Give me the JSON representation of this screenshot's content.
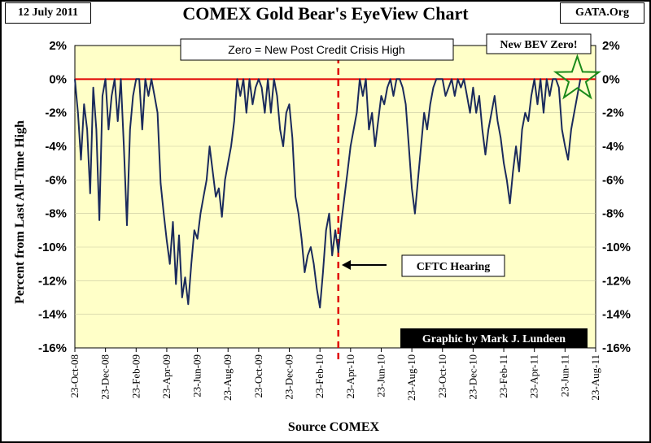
{
  "header": {
    "date": "12 July 2011",
    "title": "COMEX Gold Bear's EyeView Chart",
    "source_tag": "GATA.Org"
  },
  "chart_data": {
    "type": "line",
    "title": "COMEX Gold Bear's EyeView Chart",
    "xlabel": "Source COMEX",
    "ylabel": "Percent from Last All-Time High",
    "ylim": [
      -16,
      2
    ],
    "y_ticks": [
      2,
      0,
      -2,
      -4,
      -6,
      -8,
      -10,
      -12,
      -14,
      -16
    ],
    "y_tick_labels": [
      "2%",
      "0%",
      "-2%",
      "-4%",
      "-6%",
      "-8%",
      "-10%",
      "-12%",
      "-14%",
      "-16%"
    ],
    "x_tick_labels": [
      "23-Oct-08",
      "23-Dec-08",
      "23-Feb-09",
      "23-Apr-09",
      "23-Jun-09",
      "23-Aug-09",
      "23-Oct-09",
      "23-Dec-09",
      "23-Feb-10",
      "23-Apr-10",
      "23-Jun-10",
      "23-Aug-10",
      "23-Oct-10",
      "23-Dec-10",
      "23-Feb-11",
      "23-Apr-11",
      "23-Jun-11",
      "23-Aug-11"
    ],
    "x_index_range": [
      0,
      34
    ],
    "zero_line_label": "Zero = New Post Credit Crisis High",
    "cftc_marker": {
      "x": 17.2,
      "label": "CFTC Hearing"
    },
    "star_annotation": {
      "x": 32.8,
      "y": 0,
      "label": "New BEV Zero!"
    },
    "credit": "Graphic by Mark J. Lundeen",
    "series": [
      {
        "name": "Gold % from last all-time high",
        "x": [
          0.0,
          0.2,
          0.4,
          0.6,
          0.8,
          1.0,
          1.2,
          1.4,
          1.6,
          1.8,
          2.0,
          2.2,
          2.4,
          2.6,
          2.8,
          3.0,
          3.2,
          3.4,
          3.6,
          3.8,
          4.0,
          4.2,
          4.4,
          4.6,
          4.8,
          5.0,
          5.2,
          5.4,
          5.6,
          5.8,
          6.0,
          6.2,
          6.4,
          6.6,
          6.8,
          7.0,
          7.2,
          7.4,
          7.6,
          7.8,
          8.0,
          8.2,
          8.4,
          8.6,
          8.8,
          9.0,
          9.2,
          9.4,
          9.6,
          9.8,
          10.0,
          10.2,
          10.4,
          10.6,
          10.8,
          11.0,
          11.2,
          11.4,
          11.6,
          11.8,
          12.0,
          12.2,
          12.4,
          12.6,
          12.8,
          13.0,
          13.2,
          13.4,
          13.6,
          13.8,
          14.0,
          14.2,
          14.4,
          14.6,
          14.8,
          15.0,
          15.2,
          15.4,
          15.6,
          15.8,
          16.0,
          16.2,
          16.4,
          16.6,
          16.8,
          17.0,
          17.2,
          17.4,
          17.6,
          17.8,
          18.0,
          18.2,
          18.4,
          18.6,
          18.8,
          19.0,
          19.2,
          19.4,
          19.6,
          19.8,
          20.0,
          20.2,
          20.4,
          20.6,
          20.8,
          21.0,
          21.2,
          21.4,
          21.6,
          21.8,
          22.0,
          22.2,
          22.4,
          22.6,
          22.8,
          23.0,
          23.2,
          23.4,
          23.6,
          23.8,
          24.0,
          24.2,
          24.4,
          24.6,
          24.8,
          25.0,
          25.2,
          25.4,
          25.6,
          25.8,
          26.0,
          26.2,
          26.4,
          26.6,
          26.8,
          27.0,
          27.2,
          27.4,
          27.6,
          27.8,
          28.0,
          28.2,
          28.4,
          28.6,
          28.8,
          29.0,
          29.2,
          29.4,
          29.6,
          29.8,
          30.0,
          30.2,
          30.4,
          30.6,
          30.8,
          31.0,
          31.2,
          31.4,
          31.6,
          31.8,
          32.0,
          32.2,
          32.4,
          32.6,
          32.8,
          33.0
        ],
        "values": [
          0,
          -2,
          -4.8,
          -1.5,
          -3,
          -6.8,
          -0.5,
          -3,
          -8.4,
          -1,
          0,
          -3,
          -1,
          0,
          -2.5,
          0,
          -4,
          -8.7,
          -3,
          -1,
          0,
          0,
          -3,
          0,
          -1,
          0,
          -1,
          -2,
          -6.2,
          -8,
          -9.6,
          -11,
          -8.5,
          -12.2,
          -9.3,
          -13,
          -11.8,
          -13.4,
          -11,
          -9,
          -9.5,
          -8,
          -7,
          -6,
          -4,
          -5.5,
          -7,
          -6.5,
          -8.2,
          -6,
          -5,
          -4,
          -2.5,
          0,
          -1,
          0,
          -2,
          0,
          -1.5,
          -0.5,
          0,
          -0.5,
          -2,
          0,
          -2,
          0,
          -1,
          -3,
          -4,
          -2,
          -1.5,
          -3.5,
          -7,
          -8,
          -9.5,
          -11.5,
          -10.5,
          -10,
          -11,
          -12.5,
          -13.6,
          -11.5,
          -9,
          -8,
          -10.5,
          -9,
          -10.3,
          -8.5,
          -7,
          -5.5,
          -4,
          -3,
          -2,
          0,
          -1,
          0,
          -3,
          -2,
          -4,
          -2.5,
          -1,
          -1.5,
          -0.5,
          0,
          -1,
          0,
          0,
          -0.5,
          -1.5,
          -4,
          -6.5,
          -8,
          -6,
          -4,
          -2,
          -3,
          -1.5,
          -0.5,
          0,
          0,
          0,
          -1,
          -0.5,
          0,
          -1,
          0,
          -0.5,
          0,
          -1,
          -2,
          -0.5,
          -2,
          -1,
          -3,
          -4.5,
          -3,
          -2,
          -1,
          -2.5,
          -3.5,
          -5,
          -6,
          -7.4,
          -5.5,
          -4,
          -5.5,
          -3,
          -2,
          -2.5,
          -1,
          0,
          -1.5,
          0,
          -2,
          0,
          -1,
          0,
          0,
          -0.5,
          -3,
          -4,
          -4.8,
          -3,
          -2,
          -1,
          0
        ]
      }
    ]
  }
}
